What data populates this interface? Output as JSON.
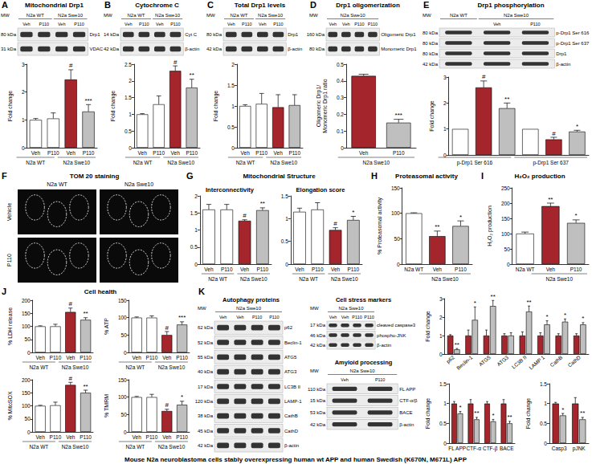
{
  "panels": [
    {
      "letter": "A",
      "title": "Mitochondrial Drp1"
    },
    {
      "letter": "B",
      "title": "Cytochrome C"
    },
    {
      "letter": "C",
      "title": "Total Drp1 levels"
    },
    {
      "letter": "D",
      "title": "Drp1 oligomerization"
    },
    {
      "letter": "E",
      "title": "Drp1 phosphorylation"
    },
    {
      "letter": "F",
      "title": "TOM 20 staining"
    },
    {
      "letter": "G",
      "title": "Mitochondrial Structure"
    },
    {
      "letter": "H",
      "title": "Proteasomal activity"
    },
    {
      "letter": "I",
      "title": "H₂O₂ production"
    },
    {
      "letter": "J",
      "title": "Cell health"
    },
    {
      "letter": "K",
      "title": null
    }
  ],
  "mw_header": "MW",
  "blots": [
    {
      "title": null,
      "headers": [
        {
          "label": "N2a WT",
          "lanes": 2
        },
        {
          "label": "N2a Swe10",
          "lanes": 2
        }
      ],
      "lanes": [
        "Veh",
        "P110",
        "Veh",
        "P110"
      ],
      "rows": [
        {
          "mw": "80 kDa",
          "label": "Drp1"
        },
        {
          "mw": "31 kDa",
          "label": "VDAC"
        }
      ]
    },
    {
      "title": null,
      "headers": [
        {
          "label": "N2a WT",
          "lanes": 2
        },
        {
          "label": "N2a Swe10",
          "lanes": 2
        }
      ],
      "lanes": [
        "Veh",
        "P110",
        "Veh",
        "P110"
      ],
      "rows": [
        {
          "mw": "14 kDa",
          "label": "Cyt C"
        },
        {
          "mw": "42 kDa",
          "label": "β-actin"
        }
      ]
    },
    {
      "title": null,
      "headers": [
        {
          "label": "N2a WT",
          "lanes": 2
        },
        {
          "label": "N2a Swe10",
          "lanes": 2
        }
      ],
      "lanes": [
        "Veh",
        "P110",
        "Veh",
        "P110"
      ],
      "rows": [
        {
          "mw": "80 kDa",
          "label": "Drp1"
        },
        {
          "mw": "42 kDa",
          "label": "β-actin"
        }
      ]
    },
    {
      "title": null,
      "headers": [
        {
          "label": "N2a Swe10",
          "lanes": 4
        }
      ],
      "lanes": [
        "Veh",
        "Veh",
        "P110",
        "P110"
      ],
      "rows": [
        {
          "mw": "160 kDa",
          "label": "Oligomeric Drp1"
        },
        {
          "mw": "80 kDa",
          "label": "Monomeric Drp1"
        }
      ]
    },
    {
      "title": null,
      "headers": [
        {
          "label": "N2a WT",
          "lanes": 1
        },
        {
          "label": "N2a Swe10",
          "lanes": 2
        }
      ],
      "lanes": [
        null,
        "Veh",
        "P110"
      ],
      "rows": [
        {
          "mw": "80 kDa",
          "label": "p-Drp1 Ser 616"
        },
        {
          "mw": "80 kDa",
          "label": "p-Drp1 Ser 637"
        },
        {
          "mw": "80 kDa",
          "label": "Drp1"
        },
        {
          "mw": "42 kDa",
          "label": "β-actin"
        }
      ]
    },
    {
      "title": "Autophagy proteins",
      "headers": [
        {
          "label": "N2a Swe10",
          "lanes": 4
        }
      ],
      "lanes": [
        "Veh",
        "Veh",
        "P110",
        "P110"
      ],
      "rows": [
        {
          "mw": "62 kDa",
          "label": "p62"
        },
        {
          "mw": "52 kDa",
          "label": "Beclin-1"
        },
        {
          "mw": "55 kDa",
          "label": "ATG5"
        },
        {
          "mw": "40 kDa",
          "label": "ATG3"
        },
        {
          "mw": "17 kDa",
          "label": "LC3B II"
        },
        {
          "mw": "120 kDa",
          "label": "LAMP-1"
        },
        {
          "mw": "38 kDa",
          "label": "CathB"
        },
        {
          "mw": "45 kDa",
          "label": "CathD"
        },
        {
          "mw": "42 kDa",
          "label": "β-actin"
        }
      ]
    },
    {
      "title": "Cell stress markers",
      "headers": [
        {
          "label": "N2a Swe10",
          "lanes": 4
        }
      ],
      "lanes": [
        "Veh",
        "Veh",
        "P110",
        "P110"
      ],
      "rows": [
        {
          "mw": "17 kDa",
          "label": "cleaved caspase3"
        },
        {
          "mw": "46 kDa",
          "label": "phospho-JNK"
        },
        {
          "mw": "42 kDa",
          "label": "β-actin"
        }
      ]
    },
    {
      "title": "Amyloid processing",
      "headers": [
        {
          "label": "N2a Swe10",
          "lanes": 2
        }
      ],
      "lanes": [
        "Veh",
        "P110"
      ],
      "rows": [
        {
          "mw": "110 kDa",
          "label": "FL APP"
        },
        {
          "mw": "15 kDa",
          "label": "CTF-α/β"
        },
        {
          "mw": "53 kDa",
          "label": "BACE"
        },
        {
          "mw": "42 kDa",
          "label": "β-actin"
        }
      ]
    }
  ],
  "images": {
    "columns": [
      "N2a WT",
      "N2a Swe10"
    ],
    "rows": [
      "Vehicle",
      "P110"
    ]
  },
  "footer": "Mouse N2a neuroblastoma cells stably overexpressing human wt APP and human Swedish (K670N, M671L) APP",
  "chart_data": [
    {
      "type": "bar",
      "ylabel": "Fold change",
      "categories": [
        "Veh",
        "P110",
        "Veh",
        "P110"
      ],
      "groups": [
        {
          "label": "N2a WT",
          "start": 0,
          "end": 1
        },
        {
          "label": "N2a Swe10",
          "start": 2,
          "end": 3
        }
      ],
      "values": [
        1,
        1.05,
        2.45,
        1.3
      ],
      "errors": [
        0.05,
        0.2,
        0.35,
        0.25
      ],
      "annotations": [
        null,
        null,
        "#",
        "***"
      ],
      "colors": [
        "#ffffff",
        "#ffffff",
        "#a4262c",
        "#bfbfbf"
      ],
      "ylim": [
        0,
        3
      ],
      "yticks": [
        0,
        1,
        2,
        3
      ],
      "grid": false
    },
    {
      "type": "bar",
      "ylabel": "Fold change",
      "categories": [
        "Veh",
        "P110",
        "Veh",
        "P110"
      ],
      "groups": [
        {
          "label": "N2a WT",
          "start": 0,
          "end": 1
        },
        {
          "label": "N2a Swe10",
          "start": 2,
          "end": 3
        }
      ],
      "values": [
        1,
        1.3,
        2.3,
        1.8
      ],
      "errors": [
        0.02,
        0.25,
        0.15,
        0.25
      ],
      "annotations": [
        null,
        null,
        "#",
        "**"
      ],
      "colors": [
        "#ffffff",
        "#ffffff",
        "#a4262c",
        "#bfbfbf"
      ],
      "ylim": [
        0,
        2.5
      ],
      "yticks": [
        0,
        0.5,
        1,
        1.5,
        2,
        2.5
      ],
      "grid": false
    },
    {
      "type": "bar",
      "ylabel": "Fold change",
      "categories": [
        "Veh",
        "P110",
        "Veh",
        "P110"
      ],
      "groups": [
        {
          "label": "N2a WT",
          "start": 0,
          "end": 1
        },
        {
          "label": "N2a Swe10",
          "start": 2,
          "end": 3
        }
      ],
      "values": [
        1,
        1.05,
        0.97,
        1.02
      ],
      "errors": [
        0.03,
        0.25,
        0.3,
        0.25
      ],
      "colors": [
        "#ffffff",
        "#ffffff",
        "#a4262c",
        "#bfbfbf"
      ],
      "ylim": [
        0,
        2
      ],
      "yticks": [
        0,
        0.5,
        1,
        1.5,
        2
      ],
      "grid": false
    },
    {
      "type": "bar",
      "ylabel": "Oligomeric Drp1/ Monomeric Drp1 ratio",
      "categories": [
        "Veh",
        "P110"
      ],
      "groups": [
        {
          "label": "N2a Swe10",
          "start": 0,
          "end": 1
        }
      ],
      "values": [
        0.43,
        0.15
      ],
      "errors": [
        0.01,
        0.02
      ],
      "annotations": [
        null,
        "***"
      ],
      "colors": [
        "#a4262c",
        "#bfbfbf"
      ],
      "ylim": [
        0,
        0.5
      ],
      "yticks": [
        0,
        0.1,
        0.2,
        0.3,
        0.4,
        0.5
      ],
      "grid": false
    },
    {
      "type": "bar",
      "ylabel": "Fold change",
      "categories": [
        null,
        null,
        null,
        null,
        null,
        null
      ],
      "groups": [
        {
          "label": "p-Drp1 Ser 616",
          "start": 0,
          "end": 2
        },
        {
          "label": "p-Drp1 Ser 637",
          "start": 3,
          "end": 5
        }
      ],
      "values": [
        1,
        2.6,
        1.8,
        1,
        0.6,
        0.9
      ],
      "errors": [
        null,
        0.25,
        0.2,
        null,
        0.08,
        0.05
      ],
      "annotations": [
        null,
        "#",
        "**",
        null,
        "#",
        "*"
      ],
      "colors": [
        "#ffffff",
        "#a4262c",
        "#bfbfbf",
        "#ffffff",
        "#a4262c",
        "#bfbfbf"
      ],
      "ylim": [
        0,
        3
      ],
      "yticks": [
        0,
        1,
        2,
        3
      ],
      "grid": false
    },
    {
      "type": "bar",
      "title": "Interconnectivity",
      "categories": [
        "Veh",
        "P110",
        "Veh",
        "P110"
      ],
      "groups": [
        {
          "label": "N2a WT",
          "start": 0,
          "end": 1
        },
        {
          "label": "N2a Swe10",
          "start": 2,
          "end": 3
        }
      ],
      "values": [
        1.6,
        1.6,
        1.27,
        1.58
      ],
      "errors": [
        0.15,
        0.15,
        0.03,
        0.07
      ],
      "annotations": [
        null,
        null,
        "#",
        "**"
      ],
      "colors": [
        "#ffffff",
        "#ffffff",
        "#a4262c",
        "#bfbfbf"
      ],
      "ylim": [
        0,
        2
      ],
      "yticks": [
        0,
        0.5,
        1,
        1.5,
        2
      ],
      "grid": false
    },
    {
      "type": "bar",
      "title": "Elongation score",
      "categories": [
        "Veh",
        "P110",
        "Veh",
        "P110"
      ],
      "groups": [
        {
          "label": "N2a WT",
          "start": 0,
          "end": 1
        },
        {
          "label": "N2a Swe10",
          "start": 2,
          "end": 3
        }
      ],
      "values": [
        1.15,
        1.2,
        0.75,
        0.97
      ],
      "errors": [
        0.08,
        0.15,
        0.05,
        0.08
      ],
      "annotations": [
        null,
        null,
        "#",
        "*"
      ],
      "colors": [
        "#ffffff",
        "#ffffff",
        "#a4262c",
        "#bfbfbf"
      ],
      "ylim": [
        0,
        1.5
      ],
      "yticks": [
        0,
        0.5,
        1,
        1.5
      ],
      "grid": false
    },
    {
      "type": "bar",
      "ylabel": "% Proteasomal activity",
      "categories": [
        "N2a WT",
        "Veh",
        "P110"
      ],
      "groups": [
        {
          "label": "N2a Swe10",
          "start": 1,
          "end": 2
        }
      ],
      "values": [
        100,
        55,
        75
      ],
      "errors": [
        1,
        10,
        10
      ],
      "annotations": [
        null,
        "**",
        "*"
      ],
      "colors": [
        "#ffffff",
        "#a4262c",
        "#bfbfbf"
      ],
      "ylim": [
        0,
        150
      ],
      "yticks": [
        0,
        50,
        100,
        150
      ],
      "grid": false
    },
    {
      "type": "bar",
      "ylabel": "H₂O₂ production",
      "categories": [
        "N2a WT",
        "Veh",
        "P110"
      ],
      "groups": [
        {
          "label": "N2a Swe10",
          "start": 1,
          "end": 2
        }
      ],
      "values": [
        100,
        190,
        135
      ],
      "errors": [
        5,
        10,
        10
      ],
      "annotations": [
        null,
        "**",
        "*"
      ],
      "colors": [
        "#ffffff",
        "#a4262c",
        "#bfbfbf"
      ],
      "ylim": [
        0,
        250
      ],
      "yticks": [
        0,
        50,
        100,
        150,
        200,
        250
      ],
      "grid": false
    },
    {
      "type": "bar",
      "ylabel": "% LDH release",
      "categories": [
        "Veh",
        "P110",
        "Veh",
        "P110"
      ],
      "groups": [
        {
          "label": "N2a WT",
          "start": 0,
          "end": 1
        },
        {
          "label": "N2a Swe10",
          "start": 2,
          "end": 3
        }
      ],
      "values": [
        100,
        100,
        155,
        125
      ],
      "errors": [
        2,
        8,
        15,
        8
      ],
      "annotations": [
        null,
        null,
        "#",
        "**"
      ],
      "colors": [
        "#ffffff",
        "#ffffff",
        "#a4262c",
        "#bfbfbf"
      ],
      "ylim": [
        0,
        200
      ],
      "yticks": [
        0,
        50,
        100,
        150,
        200
      ],
      "grid": false
    },
    {
      "type": "bar",
      "ylabel": "% ATP",
      "categories": [
        "Veh",
        "P110",
        "Veh",
        "P110"
      ],
      "groups": [
        {
          "label": "N2a WT",
          "start": 0,
          "end": 1
        },
        {
          "label": "N2a Swe10",
          "start": 2,
          "end": 3
        }
      ],
      "values": [
        100,
        100,
        50,
        80
      ],
      "errors": [
        2,
        5,
        10,
        8
      ],
      "annotations": [
        null,
        null,
        "#",
        "***"
      ],
      "colors": [
        "#ffffff",
        "#ffffff",
        "#a4262c",
        "#bfbfbf"
      ],
      "ylim": [
        0,
        150
      ],
      "yticks": [
        0,
        50,
        100,
        150
      ],
      "grid": false
    },
    {
      "type": "bar",
      "ylabel": "% MitoSOX",
      "categories": [
        "Veh",
        "P110",
        "Veh",
        "P110"
      ],
      "groups": [
        {
          "label": "N2a WT",
          "start": 0,
          "end": 1
        },
        {
          "label": "N2a Swe10",
          "start": 2,
          "end": 3
        }
      ],
      "values": [
        100,
        102,
        180,
        150
      ],
      "errors": [
        2,
        12,
        10,
        10
      ],
      "annotations": [
        null,
        null,
        "#",
        "**"
      ],
      "colors": [
        "#ffffff",
        "#ffffff",
        "#a4262c",
        "#bfbfbf"
      ],
      "ylim": [
        0,
        200
      ],
      "yticks": [
        0,
        50,
        100,
        150,
        200
      ],
      "grid": false
    },
    {
      "type": "bar",
      "ylabel": "% TMRM",
      "categories": [
        "Veh",
        "P110",
        "Veh",
        "P110"
      ],
      "groups": [
        {
          "label": "N2a WT",
          "start": 0,
          "end": 1
        },
        {
          "label": "N2a Swe10",
          "start": 2,
          "end": 3
        }
      ],
      "values": [
        100,
        100,
        60,
        78
      ],
      "errors": [
        2,
        8,
        5,
        10
      ],
      "annotations": [
        null,
        null,
        "#",
        "*"
      ],
      "colors": [
        "#ffffff",
        "#ffffff",
        "#a4262c",
        "#bfbfbf"
      ],
      "ylim": [
        0,
        150
      ],
      "yticks": [
        0,
        50,
        100,
        150
      ],
      "grid": false
    },
    {
      "type": "bar",
      "ylabel": "Fold change",
      "categories": [
        "p62",
        "Beclin-1",
        "ATG5",
        "ATG3",
        "LC3B II",
        "LAMP 1",
        "CathB",
        "CathD"
      ],
      "series": [
        {
          "color": "#a4262c",
          "values": [
            1,
            1,
            1,
            1,
            1,
            1,
            1,
            1
          ],
          "errors": [
            0.05,
            0.3,
            0.3,
            0.1,
            0.2,
            0.15,
            0.1,
            0.1
          ]
        },
        {
          "color": "#bfbfbf",
          "values": [
            0.25,
            1.85,
            2.6,
            1.0,
            2.3,
            1.6,
            1.75,
            1.6
          ],
          "errors": [
            0.05,
            0.7,
            0.3,
            0.15,
            0.3,
            0.2,
            0.15,
            0.1
          ],
          "annotations": [
            "**",
            "*",
            "**",
            null,
            "**",
            "*",
            "*",
            "*"
          ]
        }
      ],
      "ylim": [
        0,
        3
      ],
      "yticks": [
        0,
        1,
        2,
        3
      ],
      "grid": false
    },
    {
      "type": "bar",
      "ylabel": "Fold change",
      "categories": [
        "FL APP",
        "CTF-α",
        "CTF-β",
        "BACE"
      ],
      "series": [
        {
          "color": "#a4262c",
          "values": [
            1,
            1,
            1,
            1
          ],
          "errors": [
            0.05,
            0.1,
            0.05,
            0.1
          ]
        },
        {
          "color": "#bfbfbf",
          "values": [
            0.75,
            0.6,
            0.55,
            0.5
          ],
          "errors": [
            0.05,
            0.05,
            0.05,
            0.05
          ],
          "annotations": [
            "*",
            "**",
            "*",
            "**"
          ]
        }
      ],
      "ylim": [
        0,
        1.5
      ],
      "yticks": [
        0,
        0.5,
        1,
        1.5
      ],
      "grid": false
    },
    {
      "type": "bar",
      "ylabel": "Fold change",
      "categories": [
        "Casp3",
        "pJNK"
      ],
      "series": [
        {
          "color": "#a4262c",
          "values": [
            1,
            1
          ],
          "errors": [
            0.03,
            0.15
          ]
        },
        {
          "color": "#bfbfbf",
          "values": [
            0.7,
            0.6
          ],
          "errors": [
            0.05,
            0.05
          ],
          "annotations": [
            "*",
            "**"
          ]
        }
      ],
      "ylim": [
        0,
        1.5
      ],
      "yticks": [
        0,
        0.5,
        1,
        1.5
      ],
      "grid": false
    }
  ]
}
